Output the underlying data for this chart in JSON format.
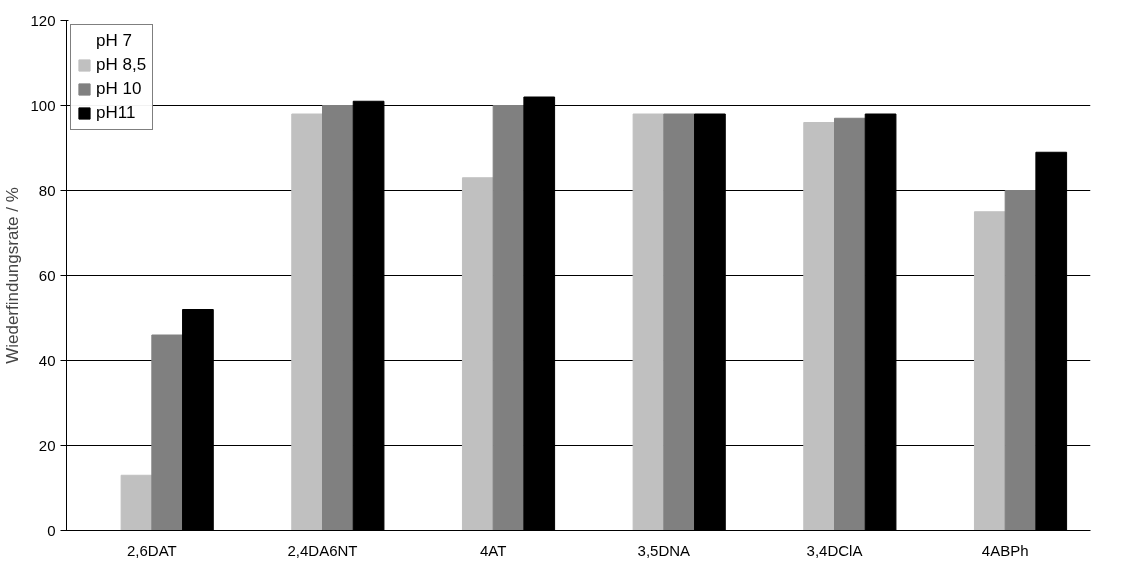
{
  "chart_data": {
    "type": "bar",
    "ylabel": "Wiederfindungsrate / %",
    "categories": [
      "2,6DAT",
      "2,4DA6NT",
      "4AT",
      "3,5DNA",
      "3,4DClA",
      "4ABPh"
    ],
    "series": [
      {
        "name": "pH 7",
        "values": [
          null,
          null,
          null,
          null,
          null,
          null
        ]
      },
      {
        "name": "pH 8,5",
        "color": "#c0c0c0",
        "values": [
          13,
          98,
          83,
          98,
          96,
          75
        ]
      },
      {
        "name": "pH 10",
        "color": "#808080",
        "values": [
          46,
          100,
          100,
          98,
          97,
          80
        ]
      },
      {
        "name": "pH11",
        "color": "#000000",
        "values": [
          52,
          101,
          102,
          98,
          98,
          89
        ]
      }
    ],
    "ylim": [
      0,
      120
    ],
    "yticks": [
      0,
      20,
      40,
      60,
      80,
      100,
      120
    ],
    "grid": "y",
    "legend": "top left"
  }
}
